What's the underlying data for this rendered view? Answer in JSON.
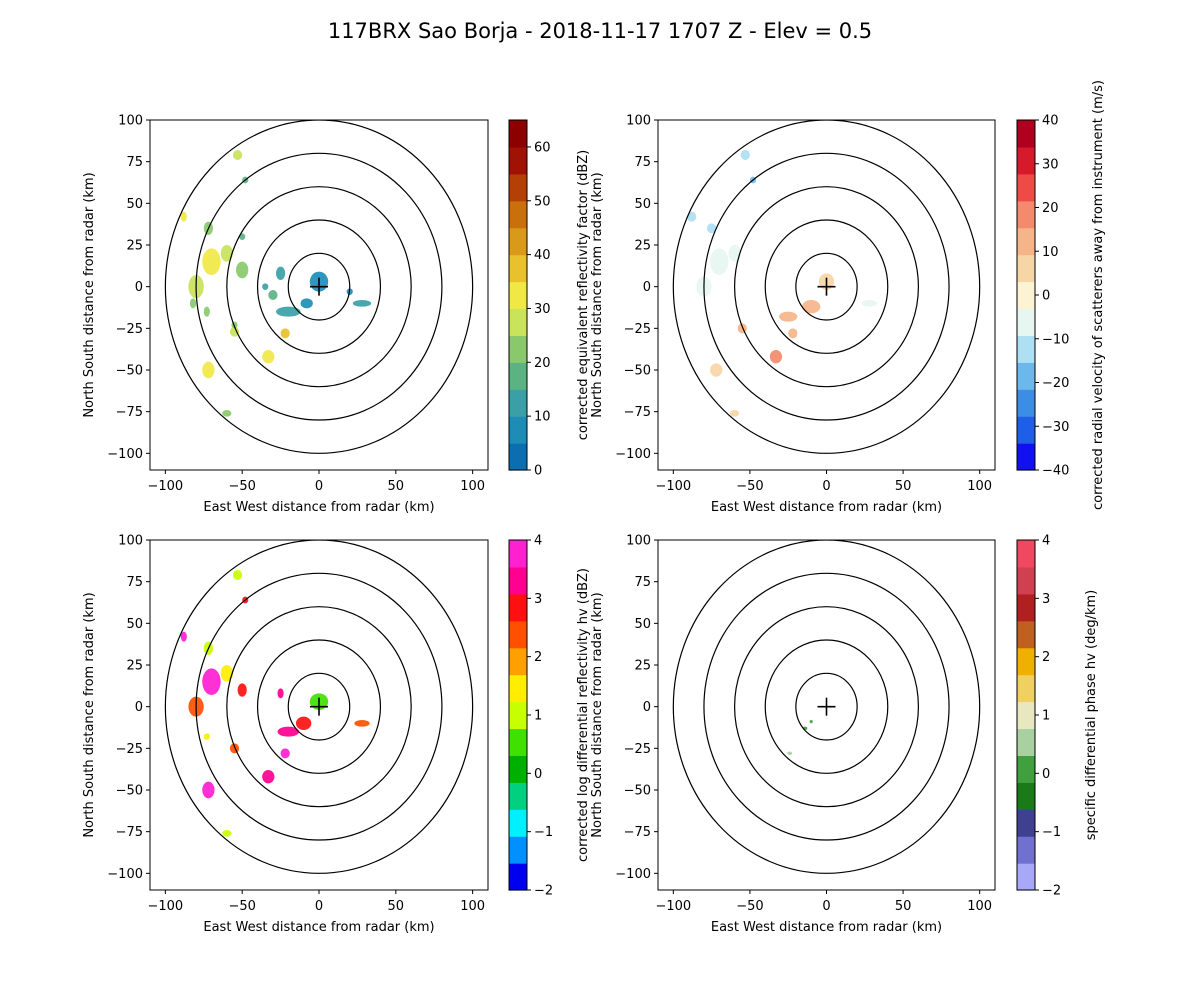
{
  "figure": {
    "title": "117BRX Sao Borja - 2018-11-17 1707 Z -  Elev = 0.5"
  },
  "chart_data": [
    {
      "type": "heatmap",
      "field": "reflectivity",
      "xlabel": "East West distance from radar (km)",
      "ylabel": "North South distance from radar (km)",
      "xlim": [
        -110,
        110
      ],
      "ylim": [
        -110,
        100
      ],
      "xticks": [
        -100,
        -50,
        0,
        50,
        100
      ],
      "yticks": [
        -100,
        -75,
        -50,
        -25,
        0,
        25,
        50,
        75,
        100
      ],
      "range_rings_km": [
        20,
        40,
        60,
        80,
        100
      ],
      "radar_marker": true,
      "colorbar": {
        "label": "corrected equivalent reflectivity factor (dBZ)",
        "min": 0,
        "max": 65,
        "ticks": [
          0,
          10,
          20,
          30,
          40,
          50,
          60
        ],
        "colors": [
          "#0a6eb0",
          "#1d8db8",
          "#3a9fa7",
          "#5bb384",
          "#89c96b",
          "#c9e35a",
          "#f0e845",
          "#e9c12c",
          "#d99a19",
          "#c9700c",
          "#b44006",
          "#a01204",
          "#8c0000"
        ]
      },
      "echoes": [
        {
          "x": 0,
          "y": 3,
          "rx": 6,
          "ry": 6,
          "v": 5
        },
        {
          "x": -8,
          "y": -10,
          "rx": 4,
          "ry": 3,
          "v": 8
        },
        {
          "x": -20,
          "y": -15,
          "rx": 8,
          "ry": 3,
          "v": 10
        },
        {
          "x": -30,
          "y": -5,
          "rx": 3,
          "ry": 3,
          "v": 15
        },
        {
          "x": -35,
          "y": 0,
          "rx": 2,
          "ry": 2,
          "v": 12
        },
        {
          "x": 28,
          "y": -10,
          "rx": 6,
          "ry": 2,
          "v": 10
        },
        {
          "x": 20,
          "y": -3,
          "rx": 2,
          "ry": 2,
          "v": 8
        },
        {
          "x": -22,
          "y": -28,
          "rx": 3,
          "ry": 3,
          "v": 35
        },
        {
          "x": -33,
          "y": -42,
          "rx": 4,
          "ry": 4,
          "v": 30
        },
        {
          "x": -55,
          "y": -27,
          "rx": 3,
          "ry": 3,
          "v": 25
        },
        {
          "x": -72,
          "y": -50,
          "rx": 4,
          "ry": 5,
          "v": 30
        },
        {
          "x": -60,
          "y": -76,
          "rx": 3,
          "ry": 2,
          "v": 20
        },
        {
          "x": -55,
          "y": -23,
          "rx": 2,
          "ry": 2,
          "v": 22
        },
        {
          "x": -70,
          "y": 15,
          "rx": 6,
          "ry": 8,
          "v": 33
        },
        {
          "x": -80,
          "y": 0,
          "rx": 5,
          "ry": 7,
          "v": 25
        },
        {
          "x": -60,
          "y": 20,
          "rx": 4,
          "ry": 5,
          "v": 28
        },
        {
          "x": -50,
          "y": 10,
          "rx": 4,
          "ry": 5,
          "v": 22
        },
        {
          "x": -72,
          "y": 35,
          "rx": 3,
          "ry": 4,
          "v": 20
        },
        {
          "x": -88,
          "y": 42,
          "rx": 2,
          "ry": 3,
          "v": 30
        },
        {
          "x": -53,
          "y": 79,
          "rx": 3,
          "ry": 3,
          "v": 25
        },
        {
          "x": -48,
          "y": 64,
          "rx": 2,
          "ry": 2,
          "v": 15
        },
        {
          "x": -73,
          "y": -15,
          "rx": 2,
          "ry": 3,
          "v": 20
        },
        {
          "x": -50,
          "y": 30,
          "rx": 2,
          "ry": 2,
          "v": 18
        },
        {
          "x": -25,
          "y": 8,
          "rx": 3,
          "ry": 4,
          "v": 10
        },
        {
          "x": -82,
          "y": -10,
          "rx": 2,
          "ry": 3,
          "v": 22
        }
      ]
    },
    {
      "type": "heatmap",
      "field": "velocity",
      "xlabel": "East West distance from radar (km)",
      "ylabel": "North South distance from radar (km)",
      "xlim": [
        -110,
        110
      ],
      "ylim": [
        -110,
        100
      ],
      "xticks": [
        -100,
        -50,
        0,
        50,
        100
      ],
      "yticks": [
        -100,
        -75,
        -50,
        -25,
        0,
        25,
        50,
        75,
        100
      ],
      "range_rings_km": [
        20,
        40,
        60,
        80,
        100
      ],
      "radar_marker": true,
      "colorbar": {
        "label": "corrected radial velocity of scatterers away from instrument (m/s)",
        "min": -40,
        "max": 40,
        "ticks": [
          -40,
          -30,
          -20,
          -10,
          0,
          10,
          20,
          30,
          40
        ],
        "colors": [
          "#1010f0",
          "#1f5fe8",
          "#3c8ee4",
          "#6cb8ec",
          "#ace0f2",
          "#e6f6f0",
          "#fbf3d4",
          "#f6d6a6",
          "#f5b589",
          "#f38a6d",
          "#ee4b46",
          "#d61a2c",
          "#b00020"
        ]
      },
      "echoes": [
        {
          "x": 0,
          "y": 3,
          "rx": 5,
          "ry": 5,
          "v": 8
        },
        {
          "x": -10,
          "y": -12,
          "rx": 6,
          "ry": 4,
          "v": 14
        },
        {
          "x": -25,
          "y": -18,
          "rx": 6,
          "ry": 3,
          "v": 12
        },
        {
          "x": -22,
          "y": -28,
          "rx": 3,
          "ry": 3,
          "v": 15
        },
        {
          "x": -33,
          "y": -42,
          "rx": 4,
          "ry": 4,
          "v": 16
        },
        {
          "x": -55,
          "y": -25,
          "rx": 3,
          "ry": 3,
          "v": 10
        },
        {
          "x": -72,
          "y": -50,
          "rx": 4,
          "ry": 4,
          "v": 8
        },
        {
          "x": -60,
          "y": -76,
          "rx": 3,
          "ry": 2,
          "v": 6
        },
        {
          "x": 28,
          "y": -10,
          "rx": 5,
          "ry": 2,
          "v": -8
        },
        {
          "x": -70,
          "y": 15,
          "rx": 6,
          "ry": 8,
          "v": -5
        },
        {
          "x": -80,
          "y": 0,
          "rx": 5,
          "ry": 6,
          "v": -6
        },
        {
          "x": -60,
          "y": 20,
          "rx": 4,
          "ry": 5,
          "v": -4
        },
        {
          "x": -88,
          "y": 42,
          "rx": 3,
          "ry": 3,
          "v": -12
        },
        {
          "x": -53,
          "y": 79,
          "rx": 3,
          "ry": 3,
          "v": -14
        },
        {
          "x": -48,
          "y": 64,
          "rx": 2,
          "ry": 2,
          "v": -20
        },
        {
          "x": -75,
          "y": 35,
          "rx": 3,
          "ry": 3,
          "v": -10
        }
      ]
    },
    {
      "type": "heatmap",
      "field": "differential_reflectivity",
      "xlabel": "East West distance from radar (km)",
      "ylabel": "North South distance from radar (km)",
      "xlim": [
        -110,
        110
      ],
      "ylim": [
        -110,
        100
      ],
      "xticks": [
        -100,
        -50,
        0,
        50,
        100
      ],
      "yticks": [
        -100,
        -75,
        -50,
        -25,
        0,
        25,
        50,
        75,
        100
      ],
      "range_rings_km": [
        20,
        40,
        60,
        80,
        100
      ],
      "radar_marker": true,
      "colorbar": {
        "label": "corrected log differential reflectivity hv (dBZ)",
        "min": -2,
        "max": 4,
        "ticks": [
          -2,
          -1,
          0,
          1,
          2,
          3,
          4
        ],
        "colors": [
          "#0000f0",
          "#0090ff",
          "#00f0ff",
          "#00d080",
          "#00b000",
          "#40e000",
          "#c8ff00",
          "#ffee00",
          "#ffa000",
          "#ff5000",
          "#ff1010",
          "#ff0090",
          "#ff20d0"
        ]
      },
      "echoes": [
        {
          "x": 0,
          "y": 3,
          "rx": 6,
          "ry": 5,
          "v": 0.5
        },
        {
          "x": -10,
          "y": -10,
          "rx": 5,
          "ry": 4,
          "v": 2.8
        },
        {
          "x": -20,
          "y": -15,
          "rx": 7,
          "ry": 3,
          "v": 3.5
        },
        {
          "x": -22,
          "y": -28,
          "rx": 3,
          "ry": 3,
          "v": 3.8
        },
        {
          "x": -33,
          "y": -42,
          "rx": 4,
          "ry": 4,
          "v": 3.2
        },
        {
          "x": -55,
          "y": -25,
          "rx": 3,
          "ry": 3,
          "v": 2.2
        },
        {
          "x": -72,
          "y": -50,
          "rx": 4,
          "ry": 5,
          "v": 3.9
        },
        {
          "x": -60,
          "y": -76,
          "rx": 3,
          "ry": 2,
          "v": 1.2
        },
        {
          "x": 28,
          "y": -10,
          "rx": 5,
          "ry": 2,
          "v": 2.6
        },
        {
          "x": -70,
          "y": 15,
          "rx": 6,
          "ry": 8,
          "v": 3.6
        },
        {
          "x": -80,
          "y": 0,
          "rx": 5,
          "ry": 6,
          "v": 2.4
        },
        {
          "x": -60,
          "y": 20,
          "rx": 4,
          "ry": 5,
          "v": 1.3
        },
        {
          "x": -50,
          "y": 10,
          "rx": 3,
          "ry": 4,
          "v": 3.0
        },
        {
          "x": -88,
          "y": 42,
          "rx": 2,
          "ry": 3,
          "v": 3.7
        },
        {
          "x": -53,
          "y": 79,
          "rx": 3,
          "ry": 3,
          "v": 1.1
        },
        {
          "x": -48,
          "y": 64,
          "rx": 2,
          "ry": 2,
          "v": 2.9
        },
        {
          "x": -72,
          "y": 35,
          "rx": 3,
          "ry": 4,
          "v": 1.0
        },
        {
          "x": -25,
          "y": 8,
          "rx": 2,
          "ry": 3,
          "v": 3.4
        },
        {
          "x": -73,
          "y": -18,
          "rx": 2,
          "ry": 2,
          "v": 1.5
        }
      ]
    },
    {
      "type": "heatmap",
      "field": "specific_differential_phase",
      "xlabel": "East West distance from radar (km)",
      "ylabel": "North South distance from radar (km)",
      "xlim": [
        -110,
        110
      ],
      "ylim": [
        -110,
        100
      ],
      "xticks": [
        -100,
        -50,
        0,
        50,
        100
      ],
      "yticks": [
        -100,
        -75,
        -50,
        -25,
        0,
        25,
        50,
        75,
        100
      ],
      "range_rings_km": [
        20,
        40,
        60,
        80,
        100
      ],
      "radar_marker": true,
      "colorbar": {
        "label": "specific differential phase hv (deg/km)",
        "min": -2,
        "max": 4,
        "ticks": [
          -2,
          -1,
          0,
          1,
          2,
          3,
          4
        ],
        "colors": [
          "#a8a8f8",
          "#7070d0",
          "#404090",
          "#1a7a1a",
          "#40a040",
          "#a8d0a0",
          "#e8e8c0",
          "#f0d060",
          "#f0b000",
          "#c06020",
          "#b02020",
          "#d04050",
          "#f04860"
        ]
      },
      "echoes": [
        {
          "x": -14,
          "y": -13,
          "rx": 1.5,
          "ry": 1,
          "v": 0.2
        },
        {
          "x": -10,
          "y": -9,
          "rx": 1,
          "ry": 1,
          "v": 0.3
        },
        {
          "x": -24,
          "y": -28,
          "rx": 1.5,
          "ry": 1,
          "v": 0.4
        }
      ]
    }
  ]
}
